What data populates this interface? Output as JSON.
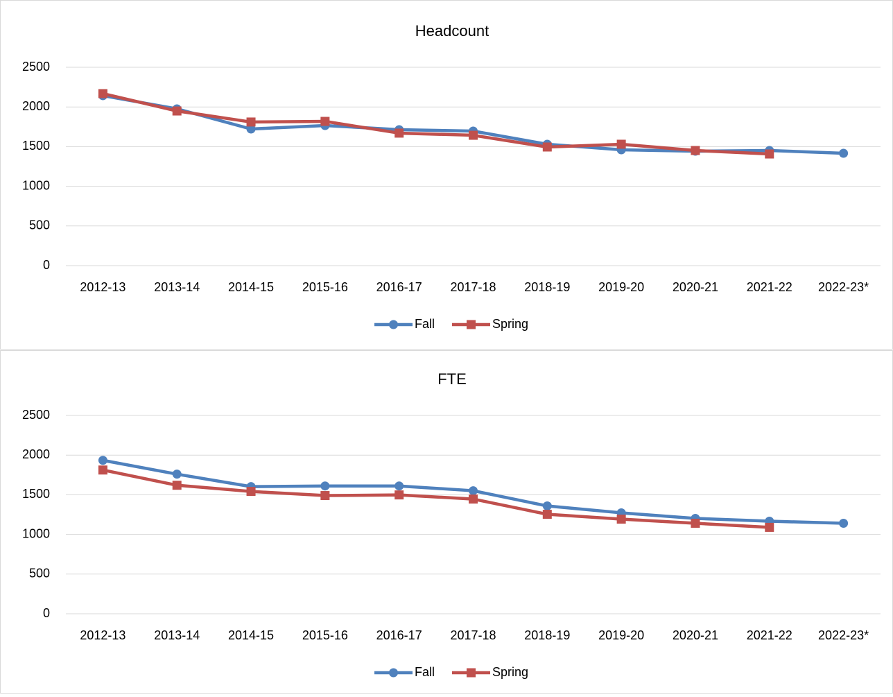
{
  "chart_data": [
    {
      "type": "line",
      "title": "Headcount",
      "categories": [
        "2012-13",
        "2013-14",
        "2014-15",
        "2015-16",
        "2016-17",
        "2017-18",
        "2018-19",
        "2019-20",
        "2020-21",
        "2021-22",
        "2022-23*"
      ],
      "series": [
        {
          "name": "Fall",
          "color": "#4f81bd",
          "values": [
            2142,
            1976,
            1722,
            1766,
            1713,
            1696,
            1530,
            1460,
            1442,
            1451,
            1416
          ]
        },
        {
          "name": "Spring",
          "color": "#c0504d",
          "values": [
            2168,
            1949,
            1810,
            1818,
            1670,
            1643,
            1495,
            1530,
            1451,
            1407,
            null
          ]
        }
      ],
      "ylim": [
        0,
        2500
      ],
      "yticks": [
        0,
        500,
        1000,
        1500,
        2000,
        2500
      ],
      "grid": true,
      "legend": "bottom"
    },
    {
      "type": "line",
      "title": "FTE",
      "categories": [
        "2012-13",
        "2013-14",
        "2014-15",
        "2015-16",
        "2016-17",
        "2017-18",
        "2018-19",
        "2019-20",
        "2020-21",
        "2021-22",
        "2022-23*"
      ],
      "series": [
        {
          "name": "Fall",
          "color": "#4f81bd",
          "values": [
            1934,
            1760,
            1603,
            1611,
            1611,
            1551,
            1359,
            1272,
            1202,
            1167,
            1141
          ]
        },
        {
          "name": "Spring",
          "color": "#c0504d",
          "values": [
            1812,
            1620,
            1542,
            1490,
            1498,
            1446,
            1254,
            1193,
            1141,
            1089,
            null
          ]
        }
      ],
      "ylim": [
        0,
        2500
      ],
      "yticks": [
        0,
        500,
        1000,
        1500,
        2000,
        2500
      ],
      "grid": true,
      "legend": "bottom"
    }
  ]
}
